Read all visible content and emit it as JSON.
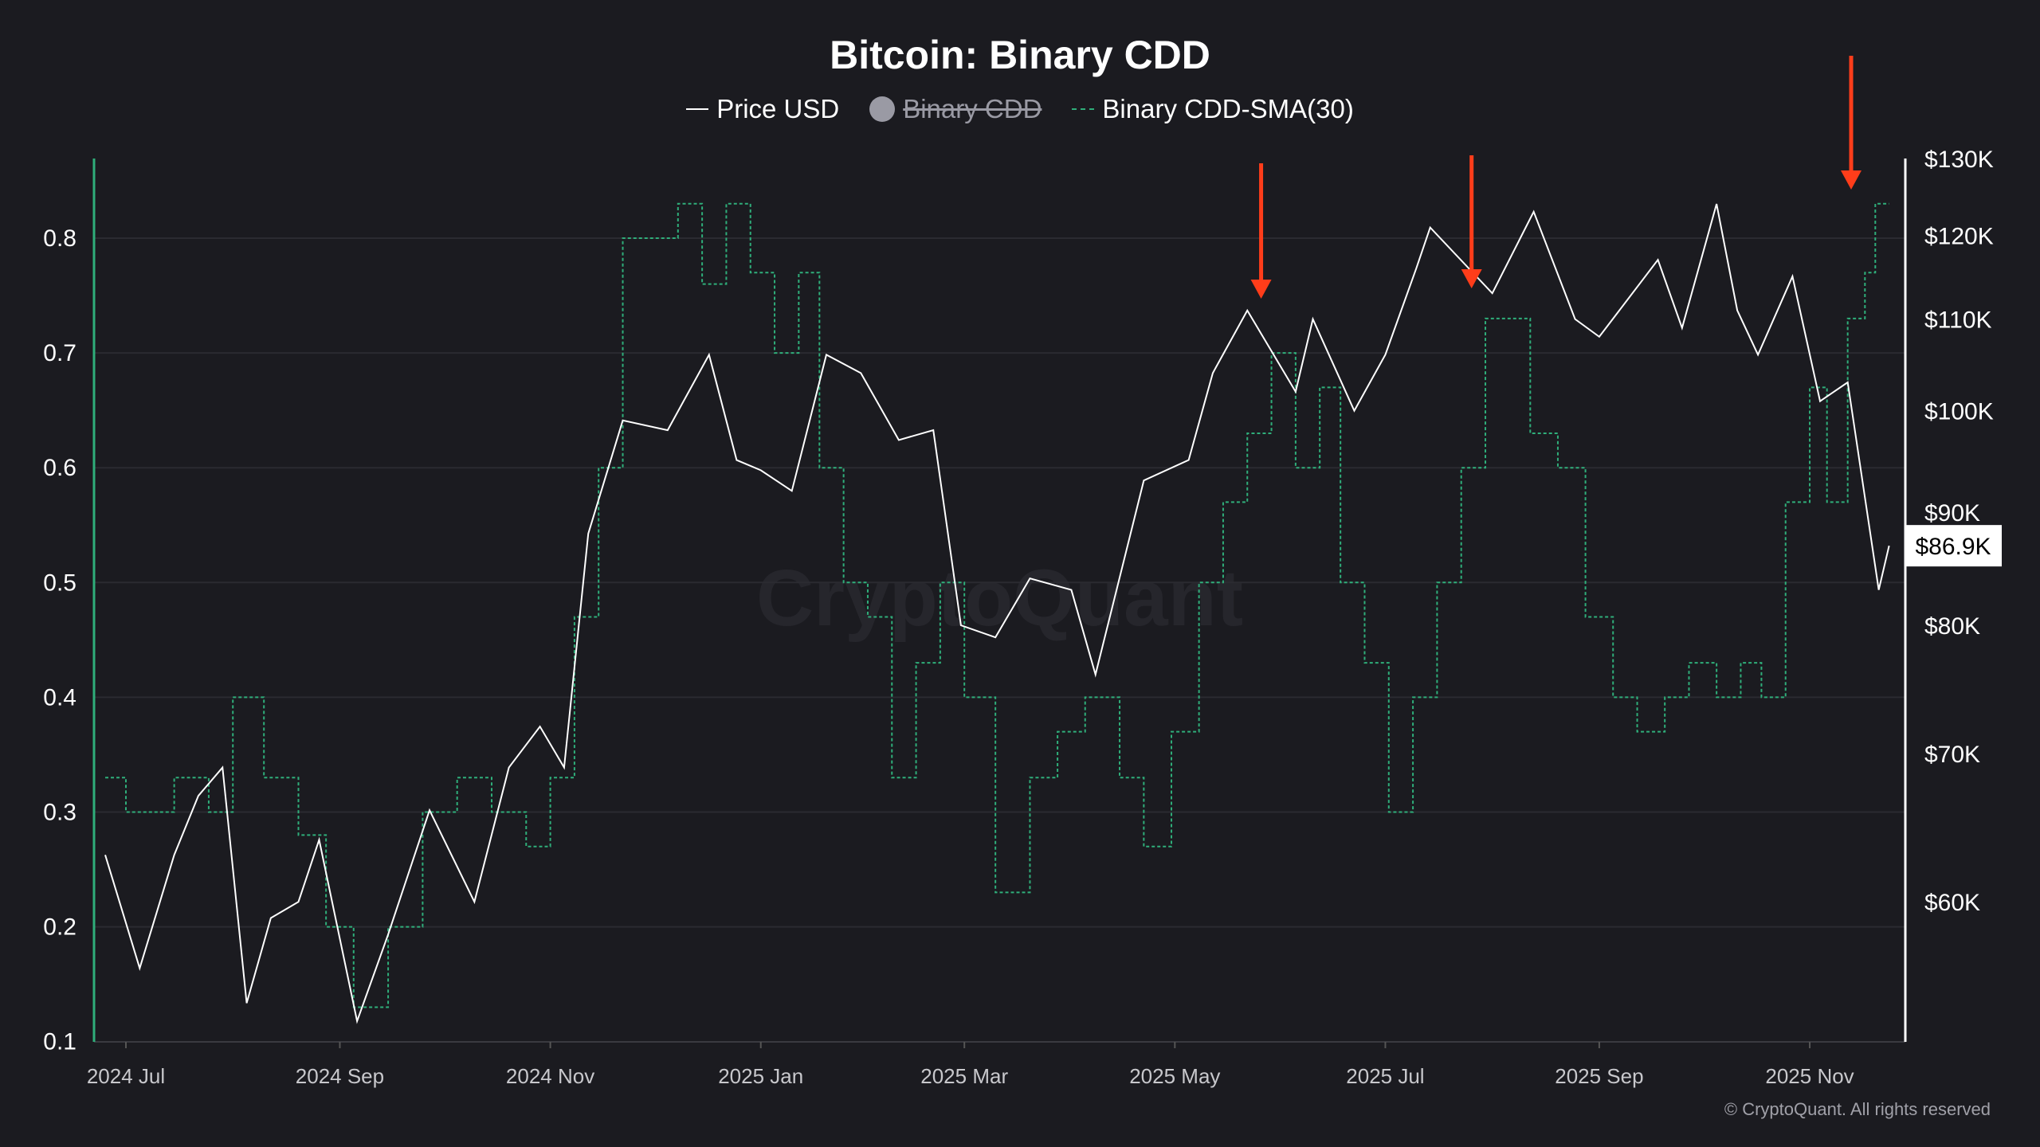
{
  "title": "Bitcoin: Binary CDD",
  "legend": [
    {
      "label": "Price USD",
      "active": true
    },
    {
      "label": "Binary CDD",
      "active": false
    },
    {
      "label": "Binary CDD-SMA(30)",
      "active": true
    }
  ],
  "watermark": "CryptoQuant",
  "copyright": "© CryptoQuant. All rights reserved",
  "colors": {
    "background": "#1b1b20",
    "price": "#ffffff",
    "sma": "#2fae7a",
    "arrow": "#ff3d1a",
    "left_axis": "#2fae7a"
  },
  "chart_data": {
    "type": "line",
    "title": "Bitcoin: Binary CDD",
    "x_ticks": [
      {
        "date": "2024-07-01",
        "label": "2024 Jul"
      },
      {
        "date": "2024-09-01",
        "label": "2024 Sep"
      },
      {
        "date": "2024-11-01",
        "label": "2024 Nov"
      },
      {
        "date": "2025-01-01",
        "label": "2025 Jan"
      },
      {
        "date": "2025-03-01",
        "label": "2025 Mar"
      },
      {
        "date": "2025-05-01",
        "label": "2025 May"
      },
      {
        "date": "2025-07-01",
        "label": "2025 Jul"
      },
      {
        "date": "2025-09-01",
        "label": "2025 Sep"
      },
      {
        "date": "2025-11-01",
        "label": "2025 Nov"
      }
    ],
    "left_axis": {
      "ticks": [
        "0.1",
        "0.2",
        "0.3",
        "0.4",
        "0.5",
        "0.6",
        "0.7",
        "0.8"
      ],
      "range": [
        0.1,
        0.87
      ]
    },
    "right_axis": {
      "scale": "log",
      "ticks": [
        {
          "value": 60,
          "label": "$60K"
        },
        {
          "value": 70,
          "label": "$70K"
        },
        {
          "value": 80,
          "label": "$80K"
        },
        {
          "value": 90,
          "label": "$90K"
        },
        {
          "value": 100,
          "label": "$100K"
        },
        {
          "value": 110,
          "label": "$110K"
        },
        {
          "value": 120,
          "label": "$120K"
        },
        {
          "value": 130,
          "label": "$130K"
        }
      ],
      "range_k": [
        51.8,
        130
      ]
    },
    "last_price_label": "$86.9K",
    "last_price_k": 86.9,
    "series": [
      {
        "name": "Price USD",
        "unit": "K USD",
        "points": [
          [
            "2024-06-25",
            63
          ],
          [
            "2024-07-05",
            56
          ],
          [
            "2024-07-15",
            63
          ],
          [
            "2024-07-22",
            67
          ],
          [
            "2024-07-29",
            69
          ],
          [
            "2024-08-05",
            54
          ],
          [
            "2024-08-12",
            59
          ],
          [
            "2024-08-20",
            60
          ],
          [
            "2024-08-26",
            64
          ],
          [
            "2024-09-06",
            53
          ],
          [
            "2024-09-15",
            58
          ],
          [
            "2024-09-27",
            66
          ],
          [
            "2024-10-10",
            60
          ],
          [
            "2024-10-20",
            69
          ],
          [
            "2024-10-29",
            72
          ],
          [
            "2024-11-05",
            69
          ],
          [
            "2024-11-12",
            88
          ],
          [
            "2024-11-22",
            99
          ],
          [
            "2024-12-05",
            98
          ],
          [
            "2024-12-17",
            106
          ],
          [
            "2024-12-25",
            95
          ],
          [
            "2025-01-01",
            94
          ],
          [
            "2025-01-10",
            92
          ],
          [
            "2025-01-20",
            106
          ],
          [
            "2025-01-30",
            104
          ],
          [
            "2025-02-10",
            97
          ],
          [
            "2025-02-20",
            98
          ],
          [
            "2025-02-28",
            80
          ],
          [
            "2025-03-10",
            79
          ],
          [
            "2025-03-20",
            84
          ],
          [
            "2025-04-01",
            83
          ],
          [
            "2025-04-08",
            76
          ],
          [
            "2025-04-22",
            93
          ],
          [
            "2025-05-05",
            95
          ],
          [
            "2025-05-12",
            104
          ],
          [
            "2025-05-22",
            111
          ],
          [
            "2025-06-05",
            102
          ],
          [
            "2025-06-10",
            110
          ],
          [
            "2025-06-22",
            100
          ],
          [
            "2025-07-01",
            106
          ],
          [
            "2025-07-10",
            116
          ],
          [
            "2025-07-14",
            121
          ],
          [
            "2025-08-01",
            113
          ],
          [
            "2025-08-13",
            123
          ],
          [
            "2025-08-25",
            110
          ],
          [
            "2025-09-01",
            108
          ],
          [
            "2025-09-18",
            117
          ],
          [
            "2025-09-25",
            109
          ],
          [
            "2025-10-05",
            124
          ],
          [
            "2025-10-11",
            111
          ],
          [
            "2025-10-17",
            106
          ],
          [
            "2025-10-27",
            115
          ],
          [
            "2025-11-04",
            101
          ],
          [
            "2025-11-12",
            103
          ],
          [
            "2025-11-21",
            83
          ],
          [
            "2025-11-24",
            86.9
          ]
        ]
      },
      {
        "name": "Binary CDD-SMA(30)",
        "unit": "ratio",
        "points": [
          [
            "2024-06-25",
            0.33
          ],
          [
            "2024-07-01",
            0.3
          ],
          [
            "2024-07-15",
            0.33
          ],
          [
            "2024-07-25",
            0.3
          ],
          [
            "2024-08-01",
            0.4
          ],
          [
            "2024-08-10",
            0.33
          ],
          [
            "2024-08-20",
            0.28
          ],
          [
            "2024-08-28",
            0.2
          ],
          [
            "2024-09-05",
            0.13
          ],
          [
            "2024-09-15",
            0.2
          ],
          [
            "2024-09-25",
            0.3
          ],
          [
            "2024-10-05",
            0.33
          ],
          [
            "2024-10-15",
            0.3
          ],
          [
            "2024-10-25",
            0.27
          ],
          [
            "2024-11-01",
            0.33
          ],
          [
            "2024-11-08",
            0.47
          ],
          [
            "2024-11-15",
            0.6
          ],
          [
            "2024-11-22",
            0.8
          ],
          [
            "2024-12-01",
            0.8
          ],
          [
            "2024-12-08",
            0.83
          ],
          [
            "2024-12-15",
            0.76
          ],
          [
            "2024-12-22",
            0.83
          ],
          [
            "2024-12-29",
            0.77
          ],
          [
            "2025-01-05",
            0.7
          ],
          [
            "2025-01-12",
            0.77
          ],
          [
            "2025-01-18",
            0.6
          ],
          [
            "2025-01-25",
            0.5
          ],
          [
            "2025-02-01",
            0.47
          ],
          [
            "2025-02-08",
            0.33
          ],
          [
            "2025-02-15",
            0.43
          ],
          [
            "2025-02-22",
            0.5
          ],
          [
            "2025-03-01",
            0.4
          ],
          [
            "2025-03-10",
            0.23
          ],
          [
            "2025-03-20",
            0.33
          ],
          [
            "2025-03-28",
            0.37
          ],
          [
            "2025-04-05",
            0.4
          ],
          [
            "2025-04-15",
            0.33
          ],
          [
            "2025-04-22",
            0.27
          ],
          [
            "2025-04-30",
            0.37
          ],
          [
            "2025-05-08",
            0.5
          ],
          [
            "2025-05-15",
            0.57
          ],
          [
            "2025-05-22",
            0.63
          ],
          [
            "2025-05-29",
            0.7
          ],
          [
            "2025-06-05",
            0.6
          ],
          [
            "2025-06-12",
            0.67
          ],
          [
            "2025-06-18",
            0.5
          ],
          [
            "2025-06-25",
            0.43
          ],
          [
            "2025-07-02",
            0.3
          ],
          [
            "2025-07-09",
            0.4
          ],
          [
            "2025-07-16",
            0.5
          ],
          [
            "2025-07-23",
            0.6
          ],
          [
            "2025-07-30",
            0.73
          ],
          [
            "2025-08-05",
            0.73
          ],
          [
            "2025-08-12",
            0.63
          ],
          [
            "2025-08-20",
            0.6
          ],
          [
            "2025-08-28",
            0.47
          ],
          [
            "2025-09-05",
            0.4
          ],
          [
            "2025-09-12",
            0.37
          ],
          [
            "2025-09-20",
            0.4
          ],
          [
            "2025-09-27",
            0.43
          ],
          [
            "2025-10-05",
            0.4
          ],
          [
            "2025-10-12",
            0.43
          ],
          [
            "2025-10-18",
            0.4
          ],
          [
            "2025-10-25",
            0.57
          ],
          [
            "2025-11-01",
            0.67
          ],
          [
            "2025-11-06",
            0.57
          ],
          [
            "2025-11-12",
            0.73
          ],
          [
            "2025-11-17",
            0.77
          ],
          [
            "2025-11-20",
            0.83
          ],
          [
            "2025-11-24",
            0.83
          ]
        ]
      }
    ],
    "annotations": [
      {
        "type": "arrow-down",
        "date": "2025-05-26"
      },
      {
        "type": "arrow-down",
        "date": "2025-07-26"
      },
      {
        "type": "arrow-down",
        "date": "2025-11-13"
      }
    ],
    "grid": true,
    "legend_position": "top-center"
  }
}
